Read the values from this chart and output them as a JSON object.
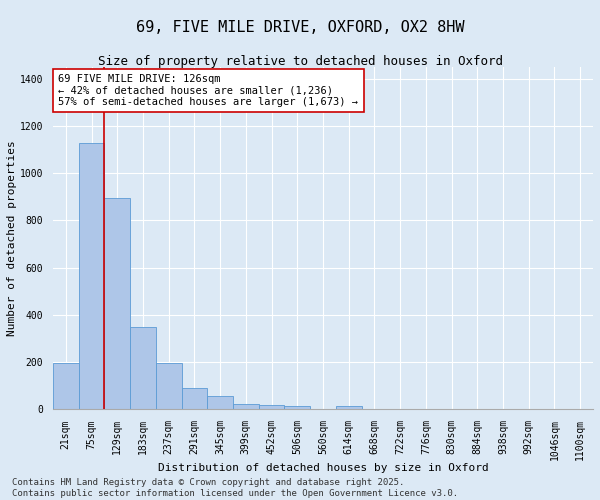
{
  "title": "69, FIVE MILE DRIVE, OXFORD, OX2 8HW",
  "subtitle": "Size of property relative to detached houses in Oxford",
  "xlabel": "Distribution of detached houses by size in Oxford",
  "ylabel": "Number of detached properties",
  "bar_labels": [
    "21sqm",
    "75sqm",
    "129sqm",
    "183sqm",
    "237sqm",
    "291sqm",
    "345sqm",
    "399sqm",
    "452sqm",
    "506sqm",
    "560sqm",
    "614sqm",
    "668sqm",
    "722sqm",
    "776sqm",
    "830sqm",
    "884sqm",
    "938sqm",
    "992sqm",
    "1046sqm",
    "1100sqm"
  ],
  "bar_values": [
    195,
    1130,
    895,
    350,
    195,
    90,
    55,
    22,
    20,
    14,
    0,
    14,
    0,
    0,
    0,
    0,
    0,
    0,
    0,
    0,
    0
  ],
  "bar_color": "#aec6e8",
  "bar_edge_color": "#5b9bd5",
  "background_color": "#dce9f5",
  "grid_color": "#ffffff",
  "vline_x_index": 2,
  "vline_color": "#cc0000",
  "annotation_text": "69 FIVE MILE DRIVE: 126sqm\n← 42% of detached houses are smaller (1,236)\n57% of semi-detached houses are larger (1,673) →",
  "annotation_box_color": "#ffffff",
  "annotation_box_edge": "#cc0000",
  "ylim": [
    0,
    1450
  ],
  "yticks": [
    0,
    200,
    400,
    600,
    800,
    1000,
    1200,
    1400
  ],
  "footer_text": "Contains HM Land Registry data © Crown copyright and database right 2025.\nContains public sector information licensed under the Open Government Licence v3.0.",
  "title_fontsize": 11,
  "subtitle_fontsize": 9,
  "axis_label_fontsize": 8,
  "tick_fontsize": 7,
  "annotation_fontsize": 7.5,
  "footer_fontsize": 6.5
}
